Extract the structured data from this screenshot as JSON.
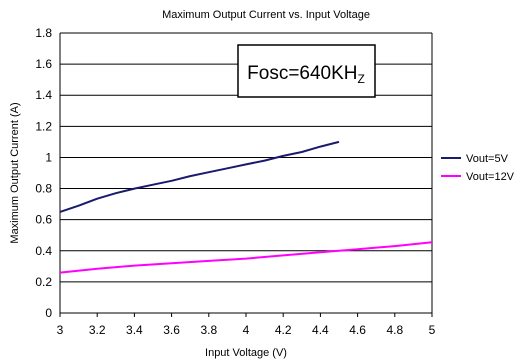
{
  "chart_data": {
    "type": "line",
    "title": "Maximum Output Current vs. Input Voltage",
    "xlabel": "Input Voltage (V)",
    "ylabel": "Maximum Output Current (A)",
    "xlim": [
      3,
      5
    ],
    "ylim": [
      0,
      1.8
    ],
    "x_ticks": [
      "3",
      "3.2",
      "3.4",
      "3.6",
      "3.8",
      "4",
      "4.2",
      "4.4",
      "4.6",
      "4.8",
      "5"
    ],
    "y_ticks": [
      "0",
      "0.2",
      "0.4",
      "0.6",
      "0.8",
      "1",
      "1.2",
      "1.4",
      "1.6",
      "1.8"
    ],
    "grid": "horizontal",
    "legend_position": "right",
    "annotation": {
      "main": "Fosc=640KH",
      "sub": "Z"
    },
    "series": [
      {
        "name": "Vout=5V",
        "color": "#1a1a6e",
        "x": [
          3.0,
          3.1,
          3.2,
          3.3,
          3.4,
          3.5,
          3.6,
          3.7,
          3.8,
          3.9,
          4.0,
          4.1,
          4.2,
          4.3,
          4.4,
          4.5
        ],
        "y": [
          0.65,
          0.69,
          0.735,
          0.77,
          0.8,
          0.825,
          0.85,
          0.88,
          0.905,
          0.93,
          0.955,
          0.98,
          1.01,
          1.035,
          1.07,
          1.1
        ]
      },
      {
        "name": "Vout=12V",
        "color": "#ff00ff",
        "x": [
          3.0,
          3.2,
          3.4,
          3.6,
          3.8,
          4.0,
          4.2,
          4.4,
          4.6,
          4.8,
          5.0
        ],
        "y": [
          0.26,
          0.285,
          0.305,
          0.32,
          0.335,
          0.35,
          0.37,
          0.39,
          0.41,
          0.43,
          0.455
        ]
      }
    ]
  }
}
